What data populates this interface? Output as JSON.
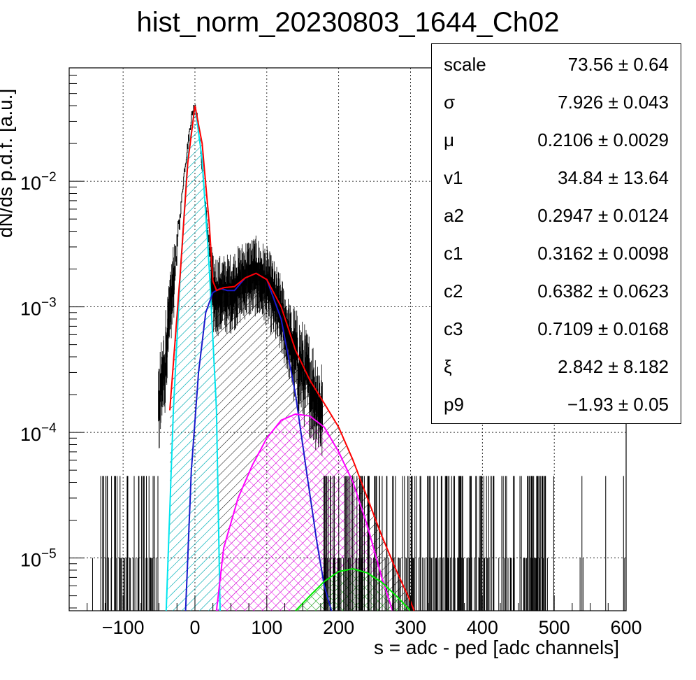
{
  "chart_data": {
    "type": "histogram",
    "title": "hist_norm_20230803_1644_Ch02",
    "xlabel": "s = adc - ped [adc channels]",
    "ylabel": "dN/ds p.d.f. [a.u.]",
    "xlim": [
      -175,
      600
    ],
    "ylim": [
      3.8e-06,
      0.08
    ],
    "yscale": "log",
    "grid": true,
    "x_ticks": [
      -100,
      0,
      100,
      200,
      300,
      400,
      500,
      600
    ],
    "x_tick_labels": [
      "−100",
      "0",
      "100",
      "200",
      "300",
      "400",
      "500",
      "600"
    ],
    "y_ticks": [
      1e-05,
      0.0001,
      0.001,
      0.01
    ],
    "y_tick_labels": [
      {
        "base": "10",
        "exp": "−5"
      },
      {
        "base": "10",
        "exp": "−4"
      },
      {
        "base": "10",
        "exp": "−3"
      },
      {
        "base": "10",
        "exp": "−2"
      }
    ],
    "series": [
      {
        "color": "#000000",
        "kind": "data-histogram",
        "x": [
          -120,
          -90,
          -60,
          -45,
          -35,
          -25,
          -15,
          -5,
          0,
          5,
          15,
          25,
          35,
          50,
          70,
          85,
          100,
          120,
          140,
          160,
          180,
          200,
          220,
          250,
          280,
          320,
          380,
          440,
          480
        ],
        "values": [
          1e-05,
          4e-05,
          7e-05,
          0.00025,
          0.0009,
          0.003,
          0.012,
          0.033,
          0.042,
          0.026,
          0.006,
          0.0013,
          0.0013,
          0.00135,
          0.00175,
          0.00185,
          0.00155,
          0.0009,
          0.0004,
          0.00025,
          0.00014,
          9e-05,
          6e-05,
          4e-05,
          2.5e-05,
          2e-05,
          1.2e-05,
          1e-05,
          1e-05
        ]
      },
      {
        "color": "#ff0000",
        "kind": "total-fit",
        "x": [
          -35,
          -20,
          -10,
          0,
          10,
          20,
          25,
          30,
          40,
          55,
          70,
          85,
          100,
          120,
          140,
          160,
          180,
          200,
          220,
          240,
          260,
          280,
          300,
          305
        ],
        "values": [
          0.00015,
          0.002,
          0.014,
          0.04,
          0.02,
          0.0045,
          0.0016,
          0.00135,
          0.00142,
          0.00145,
          0.0017,
          0.00185,
          0.00165,
          0.001,
          0.00045,
          0.00026,
          0.00017,
          0.00011,
          6e-05,
          3e-05,
          1.5e-05,
          8e-06,
          4.5e-06,
          3.8e-06
        ]
      },
      {
        "color": "#00e5ee",
        "kind": "pedestal",
        "x": [
          -40,
          -30,
          -20,
          -10,
          0,
          10,
          20,
          30,
          35
        ],
        "values": [
          3.8e-06,
          0.00015,
          0.002,
          0.015,
          0.04,
          0.015,
          0.002,
          0.00015,
          3.8e-06
        ]
      },
      {
        "color": "#1a1acc",
        "kind": "1-photoelectron",
        "x": [
          -13,
          -5,
          5,
          15,
          25,
          35,
          45,
          55,
          70,
          85,
          100,
          120,
          140,
          155,
          170,
          180,
          190
        ],
        "values": [
          3.8e-06,
          5e-05,
          0.0003,
          0.0009,
          0.0013,
          0.0014,
          0.00135,
          0.00135,
          0.0017,
          0.00185,
          0.00165,
          0.0008,
          0.0002,
          5e-05,
          1.3e-05,
          6e-06,
          3.8e-06
        ]
      },
      {
        "color": "#ff00ff",
        "kind": "2-photoelectron",
        "x": [
          30,
          40,
          60,
          80,
          100,
          120,
          140,
          160,
          180,
          200,
          220,
          240,
          260,
          275
        ],
        "values": [
          3.8e-06,
          1.2e-05,
          3e-05,
          5.5e-05,
          9e-05,
          0.000125,
          0.00014,
          0.000135,
          0.00011,
          7e-05,
          4e-05,
          1.8e-05,
          7e-06,
          3.8e-06
        ]
      },
      {
        "color": "#00ee00",
        "kind": "3-photoelectron",
        "x": [
          140,
          160,
          180,
          200,
          220,
          240,
          260,
          280,
          300
        ],
        "values": [
          3.8e-06,
          5e-06,
          6.5e-06,
          7.8e-06,
          8.2e-06,
          7.6e-06,
          6.4e-06,
          5e-06,
          3.8e-06
        ]
      }
    ]
  },
  "stats": {
    "rows": [
      {
        "name": "scale",
        "value": "73.56 ± 0.64"
      },
      {
        "name": "σ",
        "value": "7.926 ± 0.043"
      },
      {
        "name": "μ",
        "value": "0.2106 ± 0.0029"
      },
      {
        "name": "v1",
        "value": "34.84 ± 13.64"
      },
      {
        "name": "a2",
        "value": "0.2947 ± 0.0124"
      },
      {
        "name": "c1",
        "value": "0.3162 ± 0.0098"
      },
      {
        "name": "c2",
        "value": "0.6382 ± 0.0623"
      },
      {
        "name": "c3",
        "value": "0.7109 ± 0.0168"
      },
      {
        "name": "ξ",
        "value": "2.842 ± 8.182"
      },
      {
        "name": "p9",
        "value": "−1.93 ± 0.05"
      }
    ]
  }
}
